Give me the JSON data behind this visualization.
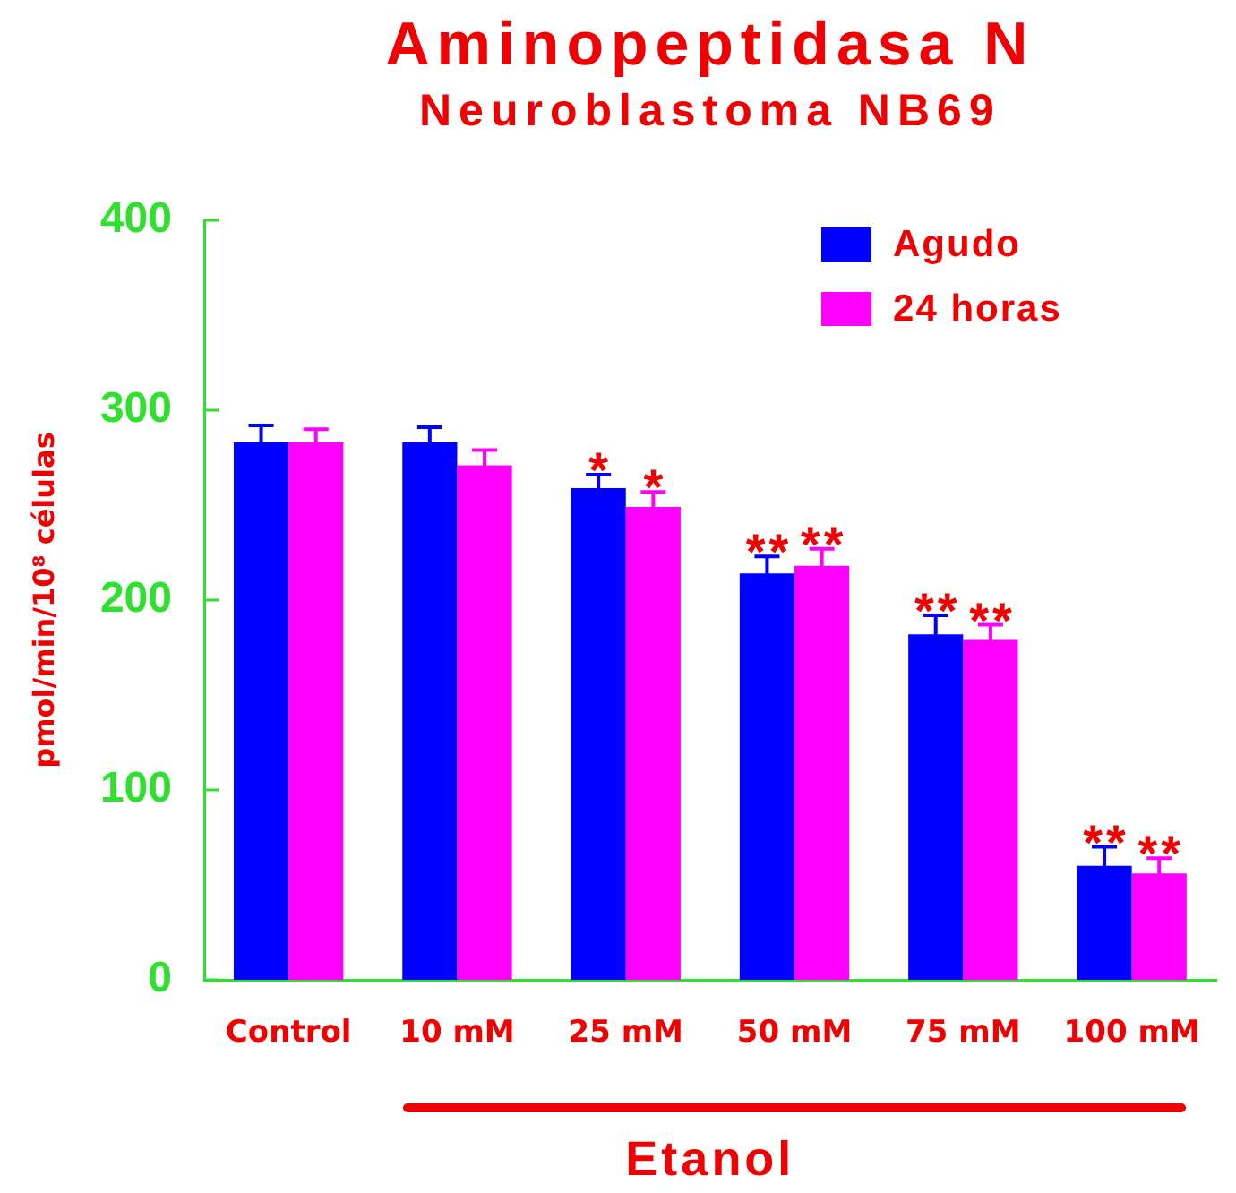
{
  "chart_data": {
    "type": "bar",
    "title": "Aminopeptidasa N",
    "subtitle": "Neuroblastoma NB69",
    "ylabel": "pmol/min/10⁸ células",
    "categories": [
      "Control",
      "10 mM",
      "25 mM",
      "50 mM",
      "75 mM",
      "100 mM"
    ],
    "series": [
      {
        "name": "Agudo",
        "color": "#0000ff",
        "values": [
          283,
          283,
          259,
          214,
          182,
          60
        ],
        "errors": [
          9,
          8,
          7,
          9,
          10,
          10
        ],
        "value_labels": [
          null,
          null,
          "*",
          "**",
          "**",
          "**"
        ]
      },
      {
        "name": "24 horas",
        "color": "#ff00ff",
        "values": [
          283,
          271,
          249,
          218,
          179,
          56
        ],
        "errors": [
          7,
          8,
          8,
          9,
          8,
          8
        ],
        "value_labels": [
          null,
          null,
          "*",
          "**",
          "**",
          "**"
        ]
      }
    ],
    "ylim": [
      0,
      400
    ],
    "yticks": [
      0,
      100,
      200,
      300,
      400
    ],
    "legend": "top right",
    "annotations": [
      "Etanol"
    ]
  }
}
